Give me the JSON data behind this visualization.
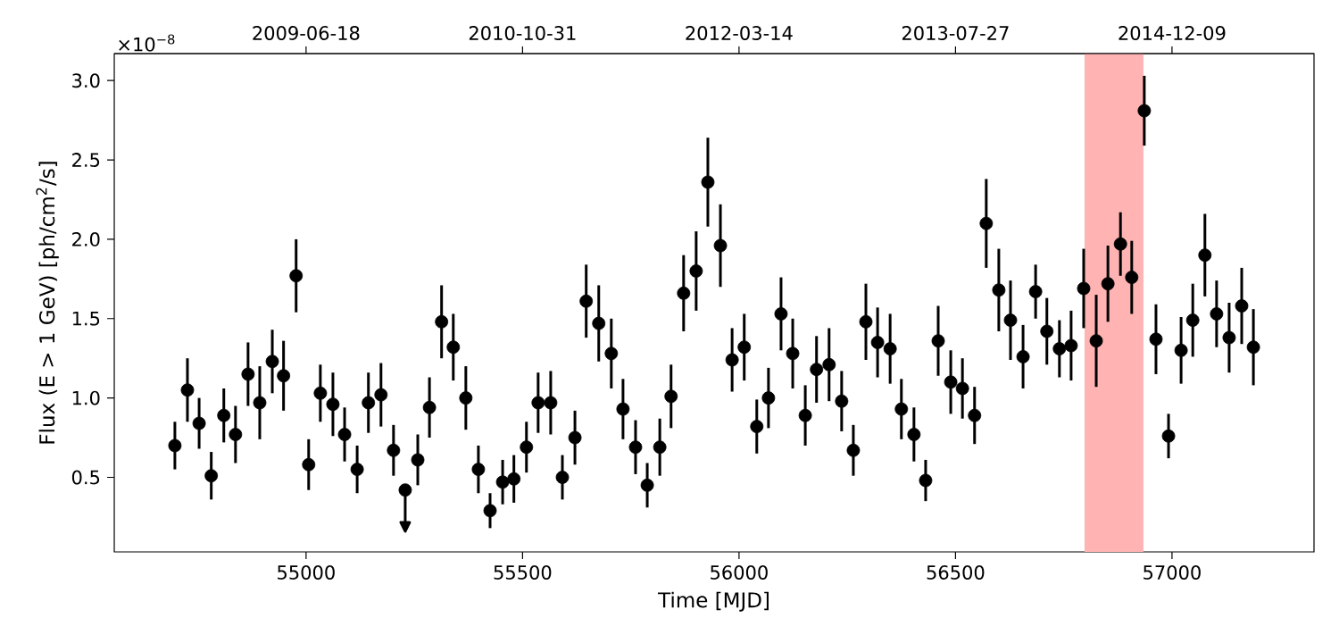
{
  "chart_data": {
    "type": "scatter",
    "xlabel": "Time [MJD]",
    "ylabel": "Flux (E > 1 GeV) [ph/cm$^{2}$/s]",
    "annotations": [
      "×10$^{−8}$"
    ],
    "x": [
      54697,
      54726,
      54753,
      54781,
      54810,
      54837,
      54866,
      54893,
      54922,
      54948,
      54977,
      55006,
      55033,
      55062,
      55089,
      55118,
      55144,
      55173,
      55202,
      55229,
      55258,
      55285,
      55313,
      55340,
      55369,
      55398,
      55425,
      55454,
      55480,
      55509,
      55536,
      55565,
      55592,
      55621,
      55647,
      55676,
      55705,
      55732,
      55761,
      55788,
      55817,
      55843,
      55872,
      55901,
      55928,
      55957,
      55984,
      56012,
      56041,
      56068,
      56097,
      56124,
      56153,
      56179,
      56208,
      56237,
      56264,
      56293,
      56320,
      56349,
      56375,
      56404,
      56431,
      56460,
      56489,
      56516,
      56544,
      56571,
      56600,
      56627,
      56656,
      56685,
      56711,
      56740,
      56767,
      56796,
      56825,
      56852,
      56881,
      56907,
      56936,
      56963,
      56992,
      57021,
      57048,
      57076,
      57103,
      57132,
      57161,
      57188
    ],
    "values": [
      0.7,
      1.05,
      0.84,
      0.51,
      0.89,
      0.77,
      1.15,
      0.97,
      1.23,
      1.14,
      1.77,
      0.58,
      1.03,
      0.96,
      0.77,
      0.55,
      0.97,
      1.02,
      0.67,
      0.42,
      0.61,
      0.94,
      1.48,
      1.32,
      1.0,
      0.55,
      0.29,
      0.47,
      0.49,
      0.69,
      0.97,
      0.97,
      0.5,
      0.75,
      1.61,
      1.47,
      1.28,
      0.93,
      0.69,
      0.45,
      0.69,
      1.01,
      1.66,
      1.8,
      2.36,
      1.96,
      1.24,
      1.32,
      0.82,
      1.0,
      1.53,
      1.28,
      0.89,
      1.18,
      1.21,
      0.98,
      0.67,
      1.48,
      1.35,
      1.31,
      0.93,
      0.77,
      0.48,
      1.36,
      1.1,
      1.06,
      0.89,
      2.1,
      1.68,
      1.49,
      1.26,
      1.67,
      1.42,
      1.31,
      1.33,
      1.69,
      1.36,
      1.72,
      1.97,
      1.76,
      2.81,
      1.37,
      0.76,
      1.3,
      1.49,
      1.9,
      1.53,
      1.38,
      1.58,
      1.32
    ],
    "errors": [
      0.15,
      0.2,
      0.16,
      0.15,
      0.17,
      0.18,
      0.2,
      0.23,
      0.2,
      0.22,
      0.23,
      0.16,
      0.18,
      0.2,
      0.17,
      0.15,
      0.19,
      0.2,
      0.16,
      [
        0.16,
        0.42
      ],
      0.16,
      0.19,
      0.23,
      0.21,
      0.2,
      0.15,
      0.11,
      0.14,
      0.15,
      0.16,
      0.19,
      0.2,
      0.14,
      0.17,
      0.23,
      0.24,
      0.22,
      0.19,
      0.17,
      0.14,
      0.18,
      0.2,
      0.24,
      0.25,
      0.28,
      0.26,
      0.2,
      0.21,
      0.17,
      0.19,
      0.23,
      0.22,
      0.19,
      0.21,
      0.23,
      0.19,
      0.16,
      0.24,
      0.22,
      0.22,
      0.19,
      0.17,
      0.13,
      0.22,
      0.2,
      0.19,
      0.18,
      0.28,
      0.26,
      0.25,
      0.2,
      0.17,
      0.21,
      0.18,
      0.22,
      0.25,
      0.29,
      0.24,
      0.2,
      0.23,
      0.22,
      0.22,
      0.14,
      0.21,
      0.23,
      0.26,
      0.21,
      0.22,
      0.24,
      0.24
    ],
    "color": "#000000",
    "bands": [
      {
        "axis": "x",
        "from": 56798,
        "to": 56934,
        "color": "#ffb3b3"
      }
    ],
    "xlim": [
      54557,
      57328
    ],
    "ylim": [
      0.03,
      3.17
    ],
    "xticks": [
      55000,
      55500,
      56000,
      56500,
      57000
    ],
    "yticks": [
      {
        "value": 0.5,
        "label": "0.5"
      },
      {
        "value": 1.0,
        "label": "1.0"
      },
      {
        "value": 1.5,
        "label": "1.5"
      },
      {
        "value": 2.0,
        "label": "2.0"
      },
      {
        "value": 2.5,
        "label": "2.5"
      },
      {
        "value": 3.0,
        "label": "3.0"
      }
    ],
    "x2lim": [
      "2008-04-01",
      "2015-11-02"
    ],
    "x2ticks": [
      "2009-06-18",
      "2010-10-31",
      "2012-03-14",
      "2013-07-27",
      "2014-12-09"
    ]
  }
}
